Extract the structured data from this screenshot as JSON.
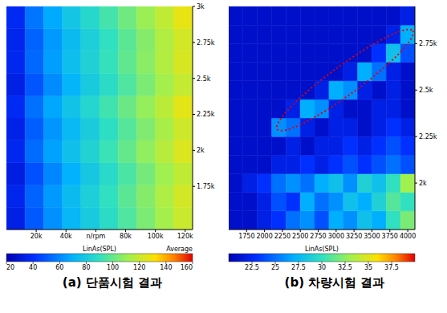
{
  "chart_data": [
    {
      "type": "heatmap",
      "caption": "(a) 단품시험 결과",
      "xlim": [
        0,
        125000
      ],
      "xticks": [
        {
          "value": 20000,
          "label": "20k"
        },
        {
          "value": 40000,
          "label": "40k"
        },
        {
          "value": 60000,
          "label": "n/rpm"
        },
        {
          "value": 80000,
          "label": "80k"
        },
        {
          "value": 100000,
          "label": "100k"
        },
        {
          "value": 120000,
          "label": "120k"
        }
      ],
      "ylim": [
        1450,
        3000
      ],
      "yticks": [
        {
          "value": 1750,
          "label": "1.75k"
        },
        {
          "value": 2000,
          "label": "2k"
        },
        {
          "value": 2250,
          "label": "2.25k"
        },
        {
          "value": 2500,
          "label": "2.5k"
        },
        {
          "value": 2750,
          "label": "2.75k"
        },
        {
          "value": 3000,
          "label": "3k"
        }
      ],
      "x_edges": [
        0,
        12500,
        25000,
        37500,
        50000,
        62500,
        75000,
        87500,
        100000,
        112500,
        125000
      ],
      "y_edges": [
        1450,
        1605,
        1760,
        1915,
        2070,
        2225,
        2380,
        2535,
        2690,
        2845,
        3000
      ],
      "values": [
        [
          34,
          50,
          62,
          72,
          80,
          88,
          96,
          104,
          112,
          120
        ],
        [
          36,
          52,
          64,
          74,
          82,
          90,
          98,
          106,
          114,
          122
        ],
        [
          33,
          48,
          60,
          70,
          79,
          87,
          95,
          103,
          111,
          118
        ],
        [
          37,
          54,
          66,
          76,
          84,
          92,
          100,
          108,
          116,
          124
        ],
        [
          35,
          51,
          63,
          73,
          81,
          89,
          97,
          105,
          113,
          121
        ],
        [
          38,
          55,
          67,
          77,
          85,
          93,
          101,
          109,
          117,
          126
        ],
        [
          34,
          49,
          61,
          71,
          80,
          88,
          96,
          104,
          112,
          119
        ],
        [
          37,
          53,
          65,
          75,
          83,
          91,
          99,
          107,
          115,
          123
        ],
        [
          36,
          52,
          64,
          74,
          82,
          90,
          98,
          106,
          115,
          122
        ],
        [
          38,
          56,
          68,
          78,
          86,
          94,
          102,
          110,
          118,
          127
        ]
      ],
      "colorbar": {
        "range": [
          20,
          160
        ],
        "ticks": [
          20,
          40,
          60,
          80,
          100,
          120,
          140,
          160
        ],
        "label": "LinAs(SPL)"
      },
      "annotations": [
        "Average"
      ]
    },
    {
      "type": "heatmap",
      "caption": "(b) 차량시험 결과",
      "xlim": [
        1500,
        4100
      ],
      "xticks": [
        1750,
        2000,
        2250,
        2500,
        2750,
        3000,
        3250,
        3500,
        3750,
        4000
      ],
      "ylim": [
        1750,
        2950
      ],
      "yticks": [
        {
          "value": 2000,
          "label": "2k"
        },
        {
          "value": 2250,
          "label": "2.25k"
        },
        {
          "value": 2500,
          "label": "2.5k"
        },
        {
          "value": 2750,
          "label": "2.75k"
        }
      ],
      "x_edges": [
        1500,
        1700,
        1900,
        2100,
        2300,
        2500,
        2700,
        2900,
        3100,
        3300,
        3500,
        3700,
        3900,
        4100
      ],
      "y_edges": [
        1750,
        1850,
        1950,
        2050,
        2150,
        2250,
        2350,
        2450,
        2550,
        2650,
        2750,
        2850,
        2950
      ],
      "values": [
        [
          21,
          21,
          22,
          23,
          25,
          26,
          24,
          27,
          26,
          28,
          27,
          30,
          32
        ],
        [
          21,
          21,
          22,
          24,
          23,
          27,
          25,
          26,
          28,
          27,
          29,
          31,
          30
        ],
        [
          21,
          22,
          23,
          25,
          26,
          25,
          27,
          28,
          26,
          29,
          28,
          30,
          33
        ],
        [
          21,
          21,
          21,
          22,
          22,
          23,
          22,
          23,
          24,
          23,
          24,
          25,
          24
        ],
        [
          21,
          21,
          21,
          21,
          22,
          21,
          22,
          22,
          23,
          22,
          23,
          24,
          23
        ],
        [
          21,
          21,
          21,
          26,
          25,
          22,
          21,
          22,
          22,
          21,
          22,
          23,
          22
        ],
        [
          21,
          21,
          21,
          21,
          22,
          27,
          26,
          22,
          21,
          21,
          22,
          22,
          21
        ],
        [
          21,
          21,
          21,
          21,
          21,
          21,
          22,
          27,
          26,
          22,
          21,
          22,
          21
        ],
        [
          21,
          21,
          21,
          21,
          21,
          21,
          21,
          21,
          22,
          27,
          25,
          22,
          21
        ],
        [
          21,
          21,
          21,
          21,
          21,
          21,
          21,
          21,
          21,
          21,
          23,
          28,
          24
        ],
        [
          21,
          21,
          21,
          21,
          21,
          21,
          21,
          21,
          21,
          21,
          21,
          22,
          27
        ],
        [
          21,
          21,
          21,
          21,
          21,
          21,
          21,
          21,
          21,
          21,
          21,
          21,
          22
        ]
      ],
      "colorbar": {
        "range": [
          20,
          40
        ],
        "ticks": [
          22.5,
          25,
          27.5,
          30,
          32.5,
          35,
          37.5
        ],
        "label": "LinAs(SPL)"
      }
    }
  ]
}
